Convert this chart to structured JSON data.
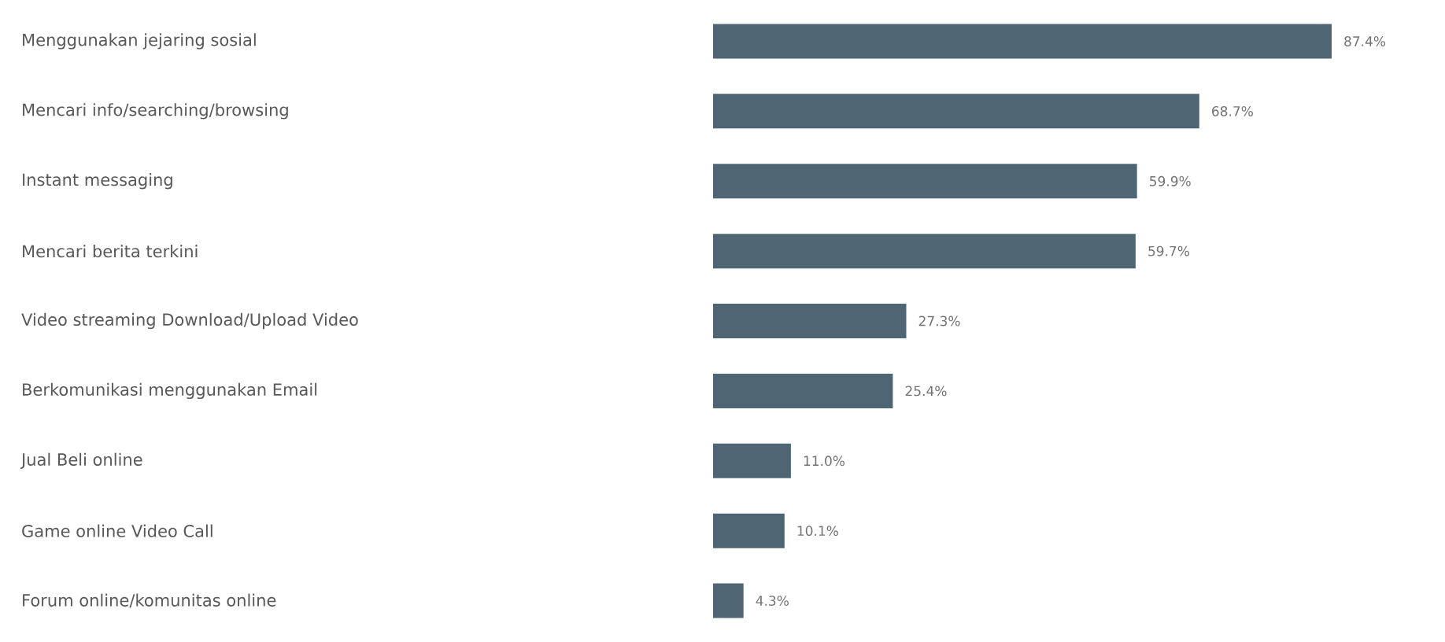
{
  "chart_data": {
    "type": "bar",
    "orientation": "horizontal",
    "categories": [
      "Menggunakan jejaring sosial",
      "Mencari info/searching/browsing",
      "Instant messaging",
      "Mencari berita terkini",
      "Video streaming Download/Upload Video",
      "Berkomunikasi menggunakan Email",
      "Jual Beli online",
      "Game online Video Call",
      "Forum online/komunitas online"
    ],
    "values": [
      87.4,
      68.7,
      59.9,
      59.7,
      27.3,
      25.4,
      11.0,
      10.1,
      4.3
    ],
    "value_labels": [
      "87.4%",
      "68.7%",
      "59.9%",
      "59.7%",
      "27.3%",
      "25.4%",
      "11.0%",
      "10.1%",
      "4.3%"
    ],
    "color": "#4f6573",
    "tick_labels": "y"
  }
}
